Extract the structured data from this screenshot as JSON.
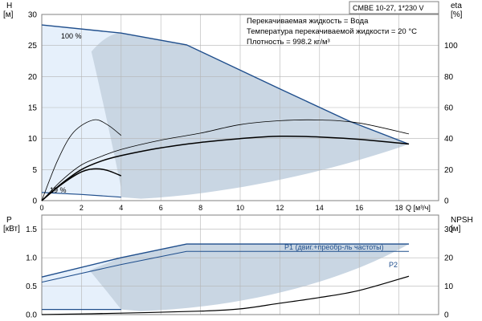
{
  "chart_data": [
    {
      "type": "line",
      "panel": "head-efficiency",
      "title_box": "CMBE 10-27, 1*230 V",
      "notes": [
        "Перекачиваемая жидкость = Вода",
        "Температура перекачиваемой жидкости = 20 °C",
        "Плотность = 998.2 кг/м³"
      ],
      "xlabel": "Q [м³/ч]",
      "ylabel_left": "H",
      "ylabel_left_unit": "[м]",
      "ylabel_right": "eta",
      "ylabel_right_unit": "[%]",
      "xlim": [
        0,
        20
      ],
      "ylim_left": [
        0,
        30
      ],
      "ylim_right": [
        0,
        120
      ],
      "x_ticks": [
        0,
        2,
        4,
        6,
        8,
        10,
        12,
        14,
        16,
        18
      ],
      "y_ticks_left": [
        0,
        5,
        10,
        15,
        20,
        25,
        30
      ],
      "y_ticks_right": [
        0,
        20,
        40,
        60,
        80,
        100
      ],
      "grid": true,
      "annotations": [
        "100 %",
        "19 %"
      ],
      "series": [
        {
          "kind": "H_max",
          "x": [
            0,
            4,
            7.3,
            12,
            15.5,
            18.5
          ],
          "y": [
            28.3,
            27.0,
            25.1,
            18.0,
            12.8,
            9.1
          ]
        },
        {
          "kind": "H_min",
          "x": [
            0,
            2,
            4
          ],
          "y": [
            1.3,
            1.0,
            0.55
          ]
        },
        {
          "kind": "eta_max",
          "x": [
            0,
            1,
            2,
            3,
            4,
            6,
            8,
            10,
            12,
            14,
            16,
            18.5
          ],
          "y": [
            0,
            11,
            20,
            25.5,
            29,
            34,
            37.5,
            40,
            41.5,
            41,
            39.5,
            36.5
          ]
        },
        {
          "kind": "eta_min",
          "x": [
            0,
            1,
            2,
            2.7,
            3.3,
            4
          ],
          "y": [
            0,
            10.5,
            18.5,
            20.5,
            19.5,
            16
          ]
        },
        {
          "kind": "eta_outer",
          "x": [
            0,
            1,
            2,
            3,
            4,
            6,
            8,
            10,
            12,
            14,
            16,
            18.5
          ],
          "y": [
            0,
            13,
            23,
            28.5,
            33,
            39,
            43.5,
            49,
            51.5,
            52,
            50,
            43
          ]
        },
        {
          "kind": "eta_min_outer",
          "x": [
            0,
            0.8,
            1.6,
            2.6,
            3.3,
            4
          ],
          "y": [
            0,
            26,
            44,
            52,
            49,
            42
          ]
        }
      ]
    },
    {
      "type": "line",
      "panel": "power-npsh",
      "ylabel_left": "P",
      "ylabel_left_unit": "[кВт]",
      "ylabel_right": "NPSH",
      "ylabel_right_unit": "[м]",
      "xlim": [
        0,
        20
      ],
      "ylim_left": [
        0,
        1.75
      ],
      "ylim_right": [
        0,
        35
      ],
      "y_ticks_left": [
        0.0,
        0.5,
        1.0,
        1.5
      ],
      "y_ticks_right": [
        0,
        10,
        20,
        30
      ],
      "grid": true,
      "series": [
        {
          "name": "P1 (двиг.+преобр-ль частоты)",
          "x": [
            0,
            4,
            7.3,
            18.5
          ],
          "y": [
            0.66,
            1.0,
            1.24,
            1.24
          ]
        },
        {
          "name": "P2",
          "x": [
            0,
            4,
            7.3,
            18.5
          ],
          "y": [
            0.57,
            0.88,
            1.11,
            1.11
          ]
        },
        {
          "kind": "P_min",
          "x": [
            0,
            4
          ],
          "y": [
            0.09,
            0.09
          ]
        },
        {
          "kind": "NPSH",
          "x": [
            0,
            4,
            8,
            10,
            12,
            14,
            16,
            18.5
          ],
          "y": [
            0,
            0.5,
            1.2,
            2,
            4,
            6,
            8.5,
            13.5
          ]
        }
      ]
    }
  ]
}
